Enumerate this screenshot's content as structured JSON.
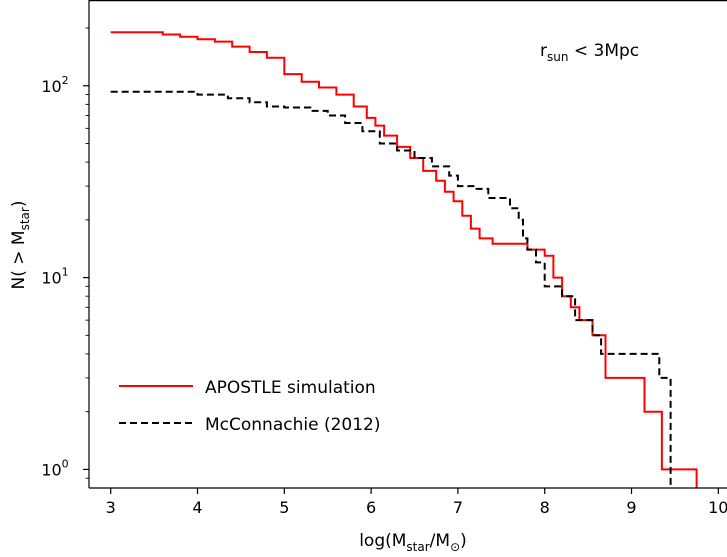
{
  "chart_data": {
    "type": "line",
    "step": true,
    "xlabel": {
      "main": "log(M",
      "sub1": "star",
      "mid": "/M",
      "sub2": "⊙",
      "end": ")"
    },
    "ylabel": {
      "main": "N( > M",
      "sub": "star",
      "end": ")"
    },
    "xlim": [
      2.75,
      10.1
    ],
    "ylim": [
      0.8,
      280
    ],
    "yscale": "log",
    "grid": false,
    "x_ticks": [
      {
        "value": 3,
        "label": "3"
      },
      {
        "value": 4,
        "label": "4"
      },
      {
        "value": 5,
        "label": "5"
      },
      {
        "value": 6,
        "label": "6"
      },
      {
        "value": 7,
        "label": "7"
      },
      {
        "value": 8,
        "label": "8"
      },
      {
        "value": 9,
        "label": "9"
      },
      {
        "value": 10,
        "label": "10"
      }
    ],
    "y_ticks": [
      {
        "value": 1,
        "base": "10",
        "exp": "0"
      },
      {
        "value": 10,
        "base": "10",
        "exp": "1"
      },
      {
        "value": 100,
        "base": "10",
        "exp": "2"
      }
    ],
    "annotation": {
      "main": "r",
      "sub": "sun",
      "rest": " < 3Mpc"
    },
    "legend_position": "lower-left",
    "series": [
      {
        "name": "APOSTLE simulation",
        "color": "#ff0000",
        "dash": "solid",
        "x": [
          3.0,
          3.45,
          3.6,
          3.8,
          4.0,
          4.2,
          4.4,
          4.6,
          4.8,
          5.0,
          5.2,
          5.4,
          5.6,
          5.8,
          5.95,
          6.05,
          6.15,
          6.3,
          6.45,
          6.6,
          6.75,
          6.85,
          6.95,
          7.05,
          7.15,
          7.25,
          7.4,
          7.6,
          7.8,
          8.0,
          8.1,
          8.2,
          8.3,
          8.4,
          8.55,
          8.7,
          9.15,
          9.35,
          9.75
        ],
        "y": [
          190,
          190,
          185,
          180,
          175,
          170,
          160,
          150,
          140,
          115,
          105,
          98,
          90,
          78,
          68,
          62,
          55,
          48,
          42,
          36,
          32,
          28,
          25,
          21,
          18,
          16,
          15,
          15,
          14,
          13,
          10,
          8,
          7,
          6,
          5,
          3,
          2,
          1,
          1
        ]
      },
      {
        "name": "McConnachie (2012)",
        "color": "#000000",
        "dash": "dashed",
        "x": [
          3.0,
          3.6,
          4.0,
          4.35,
          4.6,
          4.8,
          5.0,
          5.3,
          5.5,
          5.7,
          5.9,
          6.1,
          6.3,
          6.5,
          6.7,
          6.9,
          7.0,
          7.2,
          7.35,
          7.6,
          7.7,
          7.75,
          7.8,
          7.9,
          8.0,
          8.2,
          8.35,
          8.55,
          8.65,
          9.2,
          9.32,
          9.45
        ],
        "y": [
          93,
          93,
          90,
          86,
          82,
          78,
          77,
          74,
          70,
          64,
          58,
          50,
          46,
          42,
          38,
          34,
          30,
          29,
          26,
          23,
          20,
          16,
          14,
          12,
          9,
          8,
          6,
          5,
          4,
          4,
          3,
          1
        ]
      }
    ]
  }
}
